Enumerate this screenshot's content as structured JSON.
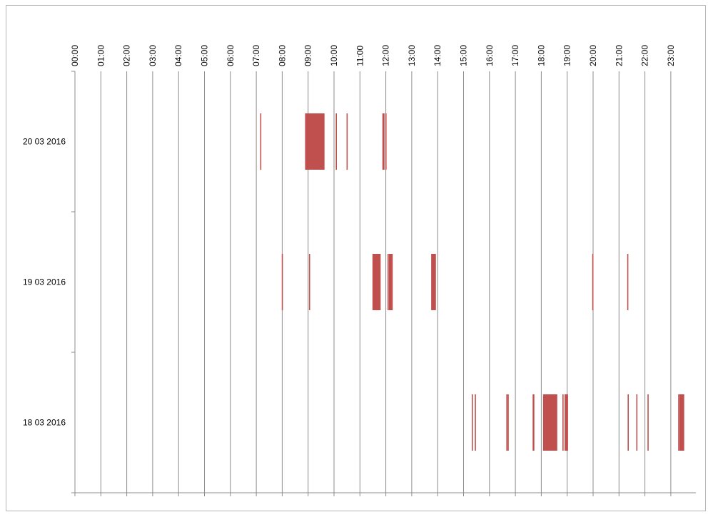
{
  "chart_data": {
    "type": "bar",
    "orientation": "timeline",
    "title": "",
    "xlabel": "",
    "ylabel": "",
    "x_range_hours": [
      0,
      24
    ],
    "x_ticks": [
      "00:00",
      "01:00",
      "02:00",
      "03:00",
      "04:00",
      "05:00",
      "06:00",
      "07:00",
      "08:00",
      "09:00",
      "10:00",
      "11:00",
      "12:00",
      "13:00",
      "14:00",
      "15:00",
      "16:00",
      "17:00",
      "18:00",
      "19:00",
      "20:00",
      "21:00",
      "22:00",
      "23:00"
    ],
    "categories": [
      "20 03 2016",
      "19 03 2016",
      "18 03 2016"
    ],
    "grid": true,
    "bar_color": "#c0504d",
    "series": [
      {
        "category": "20 03 2016",
        "intervals": [
          [
            "07:09",
            "07:11"
          ],
          [
            "08:53",
            "09:38"
          ],
          [
            "10:04",
            "10:06"
          ],
          [
            "10:29",
            "10:30"
          ],
          [
            "11:52",
            "11:57"
          ],
          [
            "11:59",
            "12:01"
          ]
        ]
      },
      {
        "category": "19 03 2016",
        "intervals": [
          [
            "07:59",
            "08:00"
          ],
          [
            "09:02",
            "09:04"
          ],
          [
            "11:29",
            "11:48"
          ],
          [
            "12:04",
            "12:05"
          ],
          [
            "12:07",
            "12:16"
          ],
          [
            "13:45",
            "13:56"
          ],
          [
            "19:58",
            "19:59"
          ],
          [
            "21:19",
            "21:21"
          ]
        ]
      },
      {
        "category": "18 03 2016",
        "intervals": [
          [
            "15:19",
            "15:21"
          ],
          [
            "15:26",
            "15:27"
          ],
          [
            "16:39",
            "16:40"
          ],
          [
            "16:42",
            "16:43"
          ],
          [
            "17:40",
            "17:44"
          ],
          [
            "18:04",
            "18:37"
          ],
          [
            "18:49",
            "18:51"
          ],
          [
            "18:54",
            "19:02"
          ],
          [
            "21:20",
            "21:21"
          ],
          [
            "21:40",
            "21:42"
          ],
          [
            "22:06",
            "22:08"
          ],
          [
            "23:17",
            "23:19"
          ],
          [
            "23:20",
            "23:31"
          ]
        ]
      }
    ]
  }
}
